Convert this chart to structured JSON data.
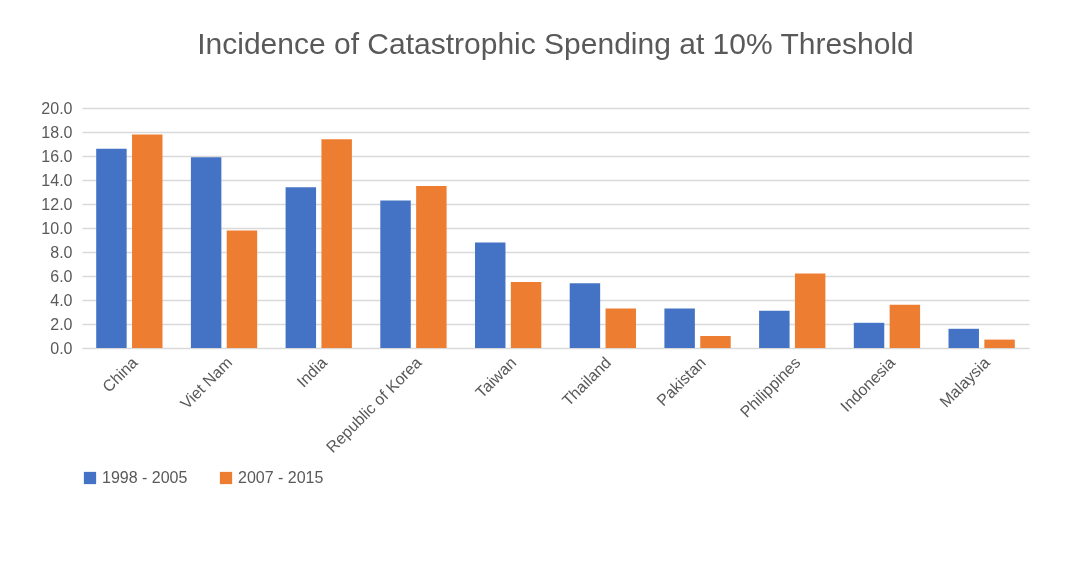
{
  "chart_data": {
    "type": "bar",
    "title": "Incidence of Catastrophic Spending at 10% Threshold",
    "categories": [
      "China",
      "Viet Nam",
      "India",
      "Republic of Korea",
      "Taiwan",
      "Thailand",
      "Pakistan",
      "Philippines",
      "Indonesia",
      "Malaysia"
    ],
    "series": [
      {
        "name": "1998 - 2005",
        "color": "#4472c4",
        "values": [
          16.6,
          15.9,
          13.4,
          12.3,
          8.8,
          5.4,
          3.3,
          3.1,
          2.1,
          1.6
        ]
      },
      {
        "name": "2007 - 2015",
        "color": "#ed7d31",
        "values": [
          17.8,
          9.8,
          17.4,
          13.5,
          5.5,
          3.3,
          1.0,
          6.2,
          3.6,
          0.7
        ]
      }
    ],
    "ylim": [
      0,
      20
    ],
    "yticks": [
      {
        "value": 0,
        "label": "0.0"
      },
      {
        "value": 2,
        "label": "2.0"
      },
      {
        "value": 4,
        "label": "4.0"
      },
      {
        "value": 6,
        "label": "6.0"
      },
      {
        "value": 8,
        "label": "8.0"
      },
      {
        "value": 10,
        "label": "10.0"
      },
      {
        "value": 12,
        "label": "12.0"
      },
      {
        "value": 14,
        "label": "14.0"
      },
      {
        "value": 16,
        "label": "16.0"
      },
      {
        "value": 18,
        "label": "18.0"
      },
      {
        "value": 20,
        "label": "20.0"
      }
    ],
    "grid": "y",
    "legend": "bottom"
  }
}
